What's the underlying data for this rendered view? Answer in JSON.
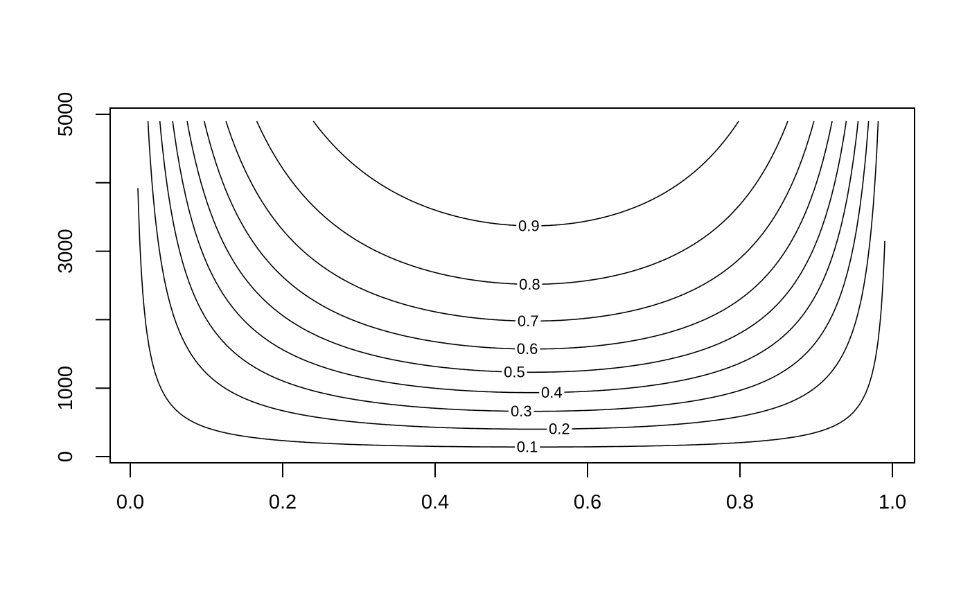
{
  "chart_data": {
    "type": "contour",
    "title": "",
    "xlabel": "",
    "ylabel": "",
    "background": "#ffffff",
    "axis_color": "#000000",
    "line_color": "#000000",
    "grid": false,
    "x_axis": {
      "range_shown": [
        -0.0292,
        1.0292
      ],
      "ticks": [
        {
          "value": 0.0,
          "label": "0.0"
        },
        {
          "value": 0.2,
          "label": "0.2"
        },
        {
          "value": 0.4,
          "label": "0.4"
        },
        {
          "value": 0.6,
          "label": "0.6"
        },
        {
          "value": 0.8,
          "label": "0.8"
        },
        {
          "value": 1.0,
          "label": "1.0"
        }
      ]
    },
    "y_axis": {
      "range_shown": [
        -92,
        5092
      ],
      "ticks": [
        {
          "value": 0,
          "label": "0"
        },
        {
          "value": 1000,
          "label": "1000"
        },
        {
          "value": 2000,
          "label": ""
        },
        {
          "value": 3000,
          "label": "3000"
        },
        {
          "value": 4000,
          "label": ""
        },
        {
          "value": 5000,
          "label": "5000"
        }
      ]
    },
    "x_grid_range": [
      0.01,
      0.99
    ],
    "n_max_grid": 4900,
    "skew": 0.223,
    "curve_model": "n(p) = n_at_p_05 * 0.25 / (p*(1-p)) * (1 - skew*(p-0.5)), clipped at n_max_grid",
    "contours": [
      {
        "level": 0.1,
        "label": "0.1",
        "n_at_p_05": 140,
        "label_p": 0.521
      },
      {
        "level": 0.2,
        "label": "0.2",
        "n_at_p_05": 402,
        "label_p": 0.563
      },
      {
        "level": 0.3,
        "label": "0.3",
        "n_at_p_05": 663,
        "label_p": 0.513
      },
      {
        "level": 0.4,
        "label": "0.4",
        "n_at_p_05": 937,
        "label_p": 0.553
      },
      {
        "level": 0.5,
        "label": "0.5",
        "n_at_p_05": 1236,
        "label_p": 0.504
      },
      {
        "level": 0.6,
        "label": "0.6",
        "n_at_p_05": 1576,
        "label_p": 0.521
      },
      {
        "level": 0.7,
        "label": "0.7",
        "n_at_p_05": 1986,
        "label_p": 0.522
      },
      {
        "level": 0.8,
        "label": "0.8",
        "n_at_p_05": 2525,
        "label_p": 0.524
      },
      {
        "level": 0.9,
        "label": "0.9",
        "n_at_p_05": 3381,
        "label_p": 0.523
      }
    ]
  }
}
